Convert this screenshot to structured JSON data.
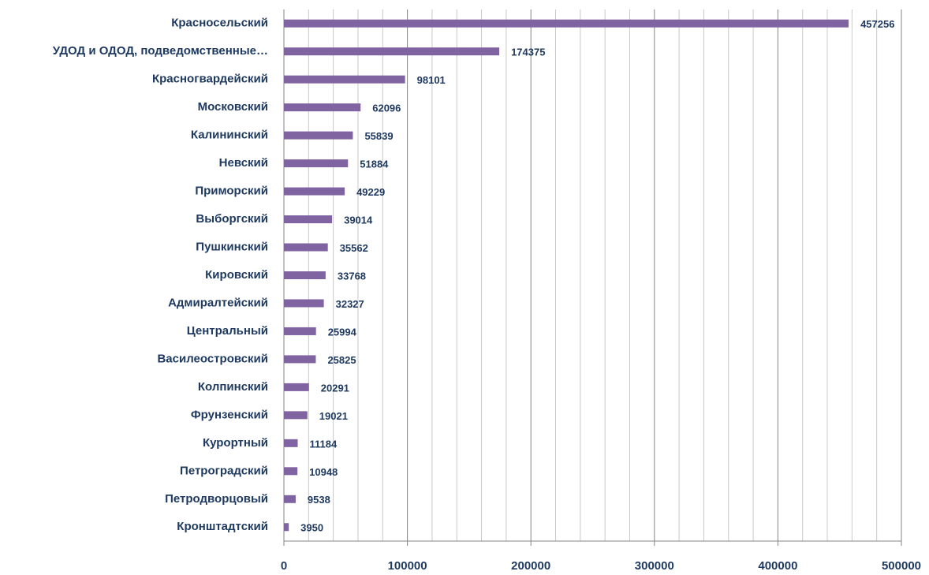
{
  "chart_data": {
    "type": "bar",
    "orientation": "horizontal",
    "categories": [
      "Красносельский",
      "УДОД и ОДОД, подведомственные…",
      "Красногвардейский",
      "Московский",
      "Калининский",
      "Невский",
      "Приморский",
      "Выборгский",
      "Пушкинский",
      "Кировский",
      "Адмиралтейский",
      "Центральный",
      "Василеостровский",
      "Колпинский",
      "Фрунзенский",
      "Курортный",
      "Петроградский",
      "Петродворцовый",
      "Кронштадтский"
    ],
    "values": [
      457256,
      174375,
      98101,
      62096,
      55839,
      51884,
      49229,
      39014,
      35562,
      33768,
      32327,
      25994,
      25825,
      20291,
      19021,
      11184,
      10948,
      9538,
      3950
    ],
    "color": "#8064a2",
    "xlim": [
      0,
      500000
    ],
    "xticks": [
      0,
      100000,
      200000,
      300000,
      400000,
      500000
    ],
    "minor_xticks": [
      20000,
      40000,
      60000,
      80000,
      120000,
      140000,
      160000,
      180000,
      220000,
      240000,
      260000,
      280000,
      320000,
      340000,
      360000,
      380000,
      420000,
      440000,
      460000,
      480000
    ],
    "grid": true
  }
}
